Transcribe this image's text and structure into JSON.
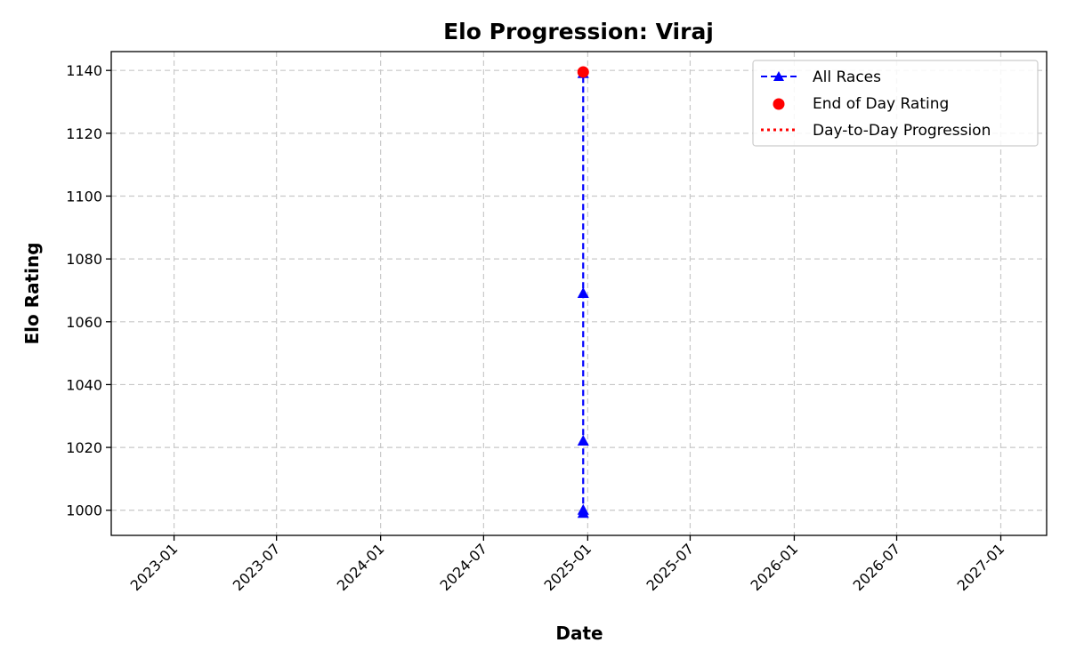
{
  "chart_data": {
    "type": "line",
    "title": "Elo Progression: Viraj",
    "xlabel": "Date",
    "ylabel": "Elo Rating",
    "x_tick_labels": [
      "2023-01",
      "2023-07",
      "2024-01",
      "2024-07",
      "2025-01",
      "2025-07",
      "2026-01",
      "2026-07",
      "2027-01"
    ],
    "x_tick_dates": [
      "2023-01-01",
      "2023-07-01",
      "2024-01-01",
      "2024-07-01",
      "2025-01-01",
      "2025-07-01",
      "2026-01-01",
      "2026-07-01",
      "2027-01-01"
    ],
    "xlim": [
      "2022-09-12",
      "2027-03-23"
    ],
    "y_ticks": [
      1000,
      1020,
      1040,
      1060,
      1080,
      1100,
      1120,
      1140
    ],
    "ylim": [
      992,
      1146
    ],
    "grid": true,
    "legend_position": "top-right",
    "series": [
      {
        "name": "All Races",
        "style": "dashed-line-triangle-markers",
        "color": "#0000ff",
        "x": [
          "2024-12-24",
          "2024-12-24",
          "2024-12-24",
          "2024-12-24",
          "2024-12-24"
        ],
        "y": [
          999,
          1000,
          1022,
          1069,
          1139
        ]
      },
      {
        "name": "End of Day Rating",
        "style": "circle-markers",
        "color": "#ff0000",
        "x": [
          "2024-12-24"
        ],
        "y": [
          1139.5
        ]
      },
      {
        "name": "Day-to-Day Progression",
        "style": "dotted-line",
        "color": "#ff0000",
        "x": [
          "2024-12-24"
        ],
        "y": [
          1139.5
        ]
      }
    ]
  }
}
